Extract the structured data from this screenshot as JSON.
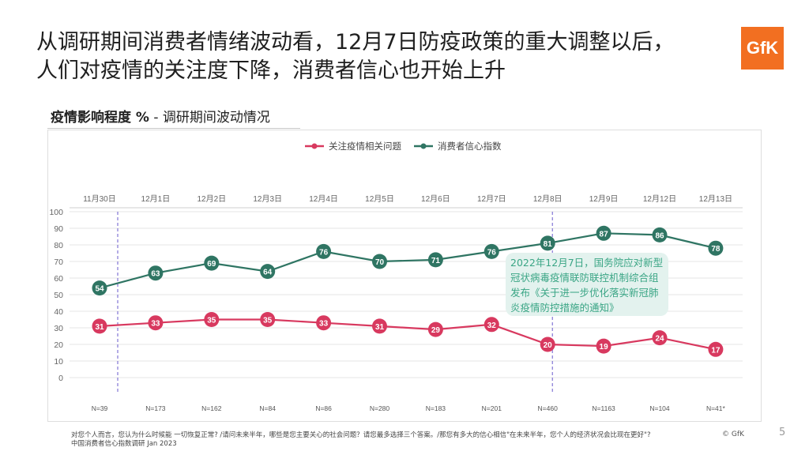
{
  "headline": {
    "line1": "从调研期间消费者情绪波动看，12月7日防疫政策的重大调整以后，",
    "line2": "人们对疫情的关注度下降，消费者信心也开始上升"
  },
  "logo_text": "GfK",
  "subtitle": {
    "bold": "疫情影响程度 %",
    "rest": " - 调研期间波动情况"
  },
  "annotation": "2022年12月7日，国务院应对新型冠状病毒疫情联防联控机制综合组发布《关于进一步优化落实新冠肺炎疫情防控措施的通知》",
  "footnote": {
    "line1": "对您个人而言，您认为什么时候能 一切恢复正常? /请问未来半年，哪些是您主要关心的社会问题？请您最多选择三个答案。/那您有多大的信心相信\"在未来半年，您个人的经济状况会比现在更好\"?",
    "line2": "中国消费者信心指数调研 Jan 2023"
  },
  "copyright": "© GfK",
  "page_number": "5",
  "colors": {
    "concern": "#d8395f",
    "confidence": "#2f7563",
    "accent": "#f26f21"
  },
  "chart_data": {
    "type": "line",
    "title": "疫情影响程度 % - 调研期间波动情况",
    "categories": [
      "11月30日",
      "12月1日",
      "12月2日",
      "12月3日",
      "12月4日",
      "12月5日",
      "12月6日",
      "12月7日",
      "12月8日",
      "12月9日",
      "12月12日",
      "12月13日"
    ],
    "sample_sizes": [
      "N=39",
      "N=173",
      "N=162",
      "N=84",
      "N=86",
      "N=280",
      "N=183",
      "N=201",
      "N=460",
      "N=1163",
      "N=104",
      "N=41*"
    ],
    "series": [
      {
        "name": "关注疫情相关问题",
        "color": "#d8395f",
        "values": [
          31,
          33,
          35,
          35,
          33,
          31,
          29,
          32,
          20,
          19,
          24,
          17
        ]
      },
      {
        "name": "消费者信心指数",
        "color": "#2f7563",
        "values": [
          54,
          63,
          69,
          64,
          76,
          70,
          71,
          76,
          81,
          87,
          86,
          78
        ]
      }
    ],
    "ylim": [
      0,
      100
    ],
    "yticks": [
      0,
      10,
      20,
      30,
      40,
      50,
      60,
      70,
      80,
      90,
      100
    ],
    "reference_lines_at": [
      "11月30日",
      "12月8日"
    ],
    "legend_position": "top-center",
    "grid": true
  }
}
